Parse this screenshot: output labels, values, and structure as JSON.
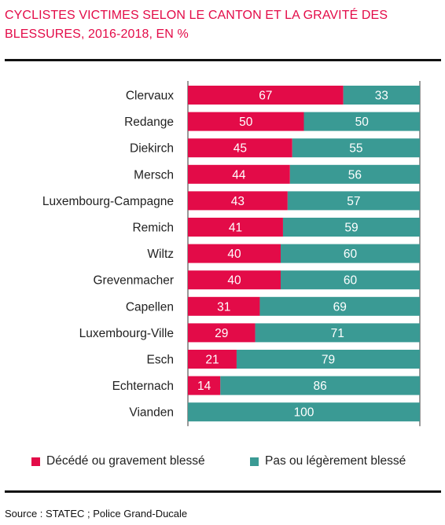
{
  "title": "CYCLISTES VICTIMES SELON LE CANTON ET LA GRAVITÉ DES BLESSURES, 2016-2018, EN %",
  "source": "Source : STATEC ; Police Grand-Ducale",
  "colors": {
    "primary": "#e30b48",
    "secondary": "#3a9a94"
  },
  "legend": {
    "primary": "Décédé ou gravement blessé",
    "secondary": "Pas ou légèrement blessé"
  },
  "chart_data": {
    "type": "bar",
    "orientation": "horizontal",
    "stacked": true,
    "title": "CYCLISTES VICTIMES SELON LE CANTON ET LA GRAVITÉ DES BLESSURES, 2016-2018, EN %",
    "categories": [
      "Clervaux",
      "Redange",
      "Diekirch",
      "Mersch",
      "Luxembourg-Campagne",
      "Remich",
      "Wiltz",
      "Grevenmacher",
      "Capellen",
      "Luxembourg-Ville",
      "Esch",
      "Echternach",
      "Vianden"
    ],
    "series": [
      {
        "name": "Décédé ou gravement blessé",
        "values": [
          67,
          50,
          45,
          44,
          43,
          41,
          40,
          40,
          31,
          29,
          21,
          14,
          0
        ]
      },
      {
        "name": "Pas ou légèrement blessé",
        "values": [
          33,
          50,
          55,
          56,
          57,
          59,
          60,
          60,
          69,
          71,
          79,
          86,
          100
        ]
      }
    ],
    "xlim": [
      0,
      100
    ],
    "legend_position": "bottom",
    "grid": false,
    "data_labels": true
  }
}
